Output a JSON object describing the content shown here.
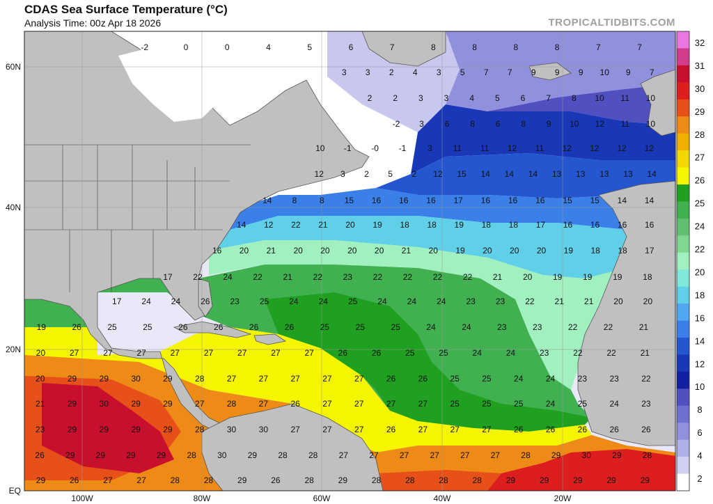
{
  "header": {
    "title": "CDAS Sea Surface Temperature (°C)",
    "subtitle": "Analysis Time: 00z Apr 18 2026",
    "brand": "TROPICALTIDBITS.COM"
  },
  "axes": {
    "lat_labels": [
      "60N",
      "40N",
      "20N",
      "EQ"
    ],
    "lon_labels": [
      "100W",
      "80W",
      "60W",
      "40W",
      "20W"
    ]
  },
  "colorbar": {
    "labels": [
      "32",
      "31",
      "30",
      "29",
      "28",
      "27",
      "26",
      "25",
      "24",
      "22",
      "20",
      "18",
      "16",
      "14",
      "12",
      "10",
      "8",
      "6",
      "4",
      "2"
    ],
    "colors": [
      "#e878e0",
      "#d23c8c",
      "#c8102e",
      "#dc1e1e",
      "#e8501a",
      "#ee8a16",
      "#f0b000",
      "#f3d800",
      "#f5f500",
      "#20a020",
      "#40b050",
      "#60c070",
      "#80d890",
      "#a0f0c0",
      "#80e8d8",
      "#60d0e8",
      "#50a8f0",
      "#3a80e8",
      "#2456d0",
      "#1838b8",
      "#1020a0",
      "#5050c0",
      "#7070d0",
      "#9090dc",
      "#b0b0e8",
      "#d0d0f0",
      "#ffffff"
    ]
  },
  "colors": {
    "land": "#c0c0c0",
    "ice": "#ffffff"
  },
  "temperature_labels": [
    "-2",
    "0",
    "0",
    "4",
    "5",
    "6",
    "7",
    "8",
    "8",
    "8",
    "8",
    "7",
    "7",
    "3",
    "3",
    "2",
    "4",
    "3",
    "5",
    "7",
    "7",
    "9",
    "9",
    "9",
    "10",
    "9",
    "7",
    "2",
    "2",
    "3",
    "3",
    "4",
    "5",
    "6",
    "7",
    "8",
    "10",
    "11",
    "10",
    "-2",
    "3",
    "6",
    "8",
    "6",
    "8",
    "9",
    "10",
    "12",
    "11",
    "10",
    "10",
    "-1",
    "-0",
    "-1",
    "3",
    "11",
    "11",
    "12",
    "11",
    "12",
    "12",
    "12",
    "12",
    "12",
    "3",
    "2",
    "5",
    "2",
    "12",
    "15",
    "14",
    "14",
    "14",
    "13",
    "13",
    "13",
    "13",
    "14",
    "14",
    "8",
    "8",
    "15",
    "16",
    "16",
    "16",
    "17",
    "16",
    "16",
    "16",
    "15",
    "15",
    "14",
    "14",
    "14",
    "12",
    "22",
    "21",
    "20",
    "19",
    "18",
    "18",
    "19",
    "18",
    "18",
    "17",
    "16",
    "16",
    "16",
    "16",
    "16",
    "20",
    "21",
    "20",
    "20",
    "20",
    "20",
    "21",
    "20",
    "19",
    "20",
    "20",
    "20",
    "19",
    "18",
    "18",
    "17",
    "17",
    "22",
    "24",
    "22",
    "21",
    "22",
    "23",
    "22",
    "22",
    "22",
    "22",
    "21",
    "20",
    "19",
    "19",
    "19",
    "18",
    "17",
    "24",
    "24",
    "26",
    "23",
    "25",
    "24",
    "24",
    "25",
    "24",
    "24",
    "24",
    "23",
    "23",
    "22",
    "21",
    "21",
    "20",
    "20",
    "19",
    "26",
    "25",
    "25",
    "26",
    "26",
    "26",
    "26",
    "25",
    "25",
    "25",
    "24",
    "24",
    "23",
    "23",
    "22",
    "22",
    "21",
    "20",
    "27",
    "27",
    "27",
    "27",
    "27",
    "27",
    "27",
    "27",
    "26",
    "26",
    "25",
    "25",
    "24",
    "24",
    "23",
    "22",
    "22",
    "21",
    "20",
    "29",
    "29",
    "30",
    "29",
    "28",
    "27",
    "27",
    "27",
    "27",
    "27",
    "26",
    "26",
    "25",
    "25",
    "24",
    "24",
    "23",
    "23",
    "22",
    "21",
    "29",
    "30",
    "29",
    "29",
    "27",
    "28",
    "27",
    "26",
    "27",
    "27",
    "27",
    "27",
    "25",
    "25",
    "25",
    "24",
    "25",
    "24",
    "23",
    "23",
    "29",
    "29",
    "29",
    "29",
    "28",
    "30",
    "30",
    "27",
    "27",
    "27",
    "26",
    "27",
    "27",
    "27",
    "26",
    "26",
    "26",
    "26",
    "26",
    "26",
    "29",
    "29",
    "29",
    "29",
    "28",
    "30",
    "29",
    "28",
    "28",
    "27",
    "27",
    "27",
    "27",
    "27",
    "27",
    "28",
    "29",
    "30",
    "29",
    "28",
    "29",
    "26",
    "27",
    "27",
    "28",
    "28",
    "29",
    "26",
    "28",
    "29",
    "28",
    "28",
    "28",
    "28",
    "29",
    "29",
    "29",
    "29",
    "29",
    "29"
  ]
}
